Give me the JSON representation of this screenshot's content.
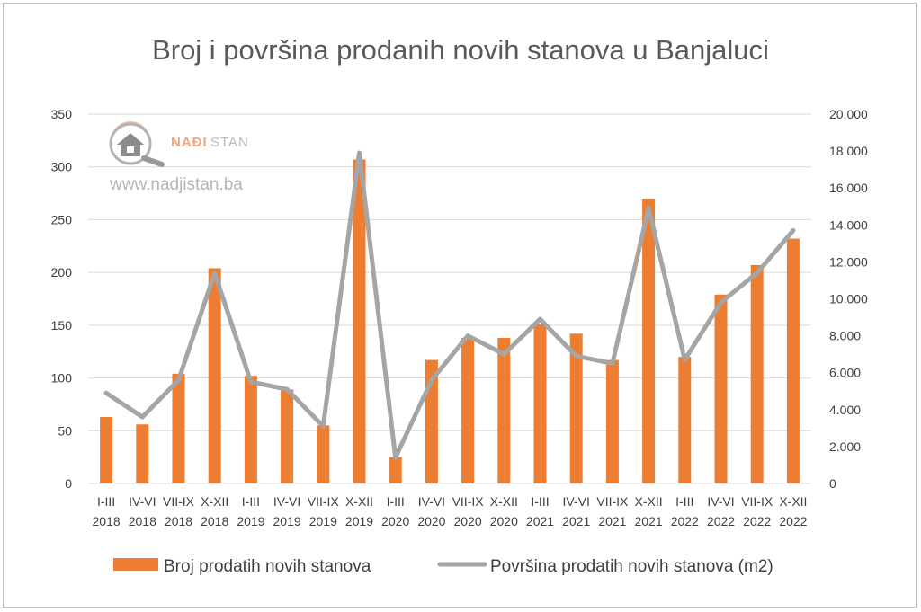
{
  "chart_data": {
    "type": "bar+line",
    "title": "Broj i površina prodanih novih stanova u Banjaluci",
    "categories": [
      [
        "I-III",
        "2018"
      ],
      [
        "IV-VI",
        "2018"
      ],
      [
        "VII-IX",
        "2018"
      ],
      [
        "X-XII",
        "2018"
      ],
      [
        "I-III",
        "2019"
      ],
      [
        "IV-VI",
        "2019"
      ],
      [
        "VII-IX",
        "2019"
      ],
      [
        "X-XII",
        "2019"
      ],
      [
        "I-III",
        "2020"
      ],
      [
        "IV-VI",
        "2020"
      ],
      [
        "VII-IX",
        "2020"
      ],
      [
        "X-XII",
        "2020"
      ],
      [
        "I-III",
        "2021"
      ],
      [
        "IV-VI",
        "2021"
      ],
      [
        "VII-IX",
        "2021"
      ],
      [
        "X-XII",
        "2021"
      ],
      [
        "I-III",
        "2022"
      ],
      [
        "IV-VI",
        "2022"
      ],
      [
        "VII-IX",
        "2022"
      ],
      [
        "X-XII",
        "2022"
      ]
    ],
    "series": [
      {
        "name": "Broj prodatih novih stanova",
        "type": "bar",
        "axis": "left",
        "color": "#ed7d31",
        "values": [
          63,
          56,
          104,
          204,
          102,
          89,
          55,
          307,
          25,
          117,
          138,
          138,
          151,
          142,
          117,
          270,
          120,
          179,
          207,
          232
        ]
      },
      {
        "name": "Površina prodatih novih stanova (m2)",
        "type": "line",
        "axis": "right",
        "color": "#a5a5a5",
        "values": [
          4900,
          3600,
          5600,
          11400,
          5500,
          5100,
          3100,
          17900,
          1400,
          5600,
          8000,
          7000,
          8900,
          6900,
          6500,
          14900,
          6700,
          9800,
          11400,
          13700
        ]
      }
    ],
    "y_left": {
      "min": 0,
      "max": 350,
      "step": 50,
      "ticks": [
        "0",
        "50",
        "100",
        "150",
        "200",
        "250",
        "300",
        "350"
      ]
    },
    "y_right": {
      "min": 0,
      "max": 20000,
      "step": 2000,
      "ticks": [
        "0",
        "2.000",
        "4.000",
        "6.000",
        "8.000",
        "10.000",
        "12.000",
        "14.000",
        "16.000",
        "18.000",
        "20.000"
      ]
    },
    "grid": true,
    "legend_position": "bottom"
  },
  "watermark": {
    "brand_part1": "NAĐI",
    "brand_part2": "STAN",
    "url": "www.nadjistan.ba",
    "icon": "house-magnifier-icon"
  }
}
